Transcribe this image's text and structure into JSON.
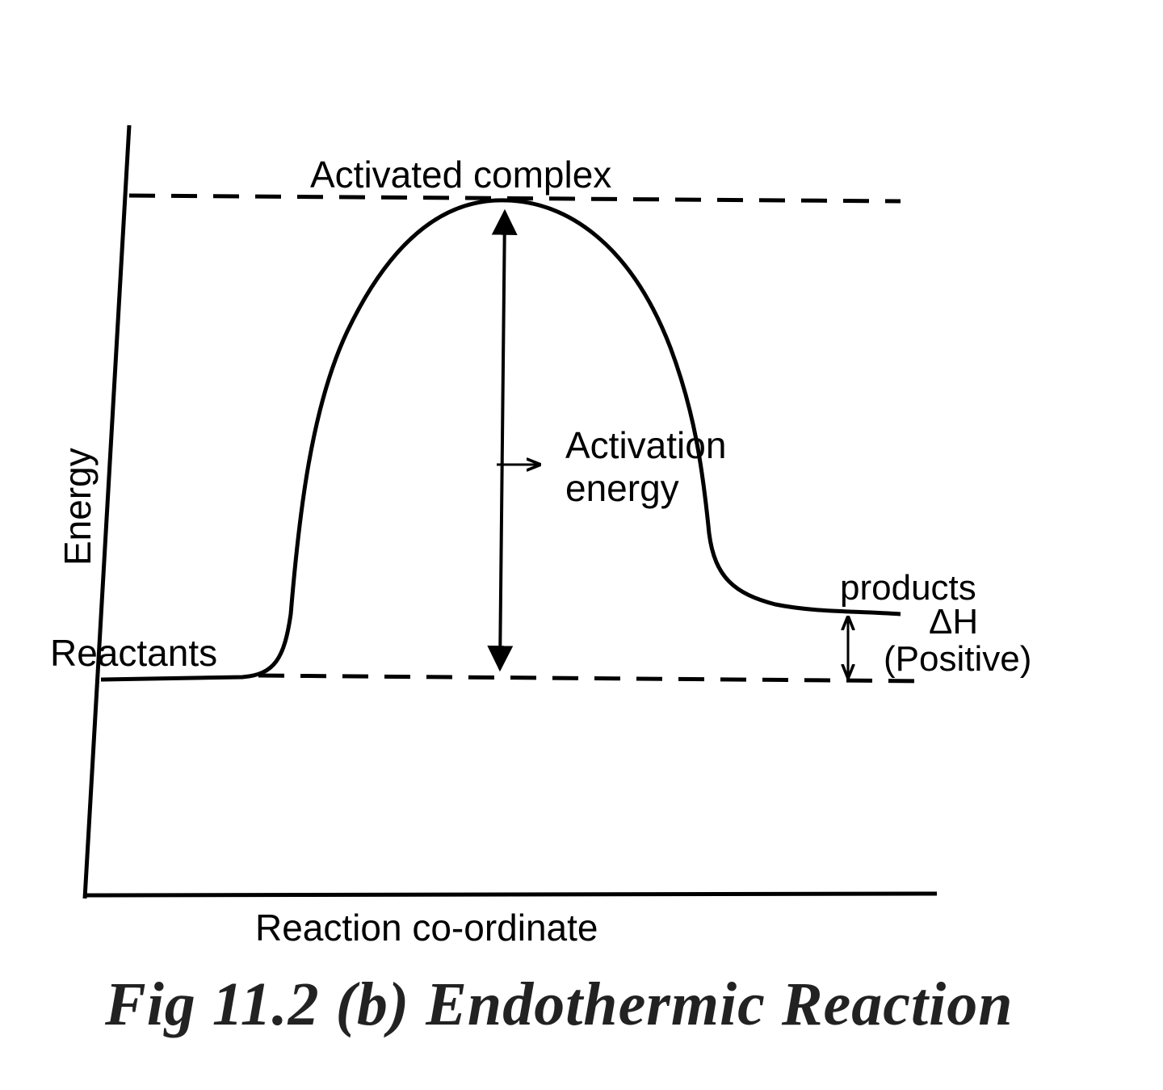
{
  "labels": {
    "activated_complex": "Activated complex",
    "activation_line1": "Activation",
    "activation_line2": "energy",
    "energy_axis": "Energy",
    "reactants": "Reactants",
    "products": "products",
    "delta_h": "ΔH",
    "positive": "(Positive)",
    "x_axis": "Reaction co-ordinate",
    "caption": "Fig 11.2 (b)  Endothermic  Reaction"
  },
  "colors": {
    "ink": "#000000",
    "background": "#ffffff"
  }
}
